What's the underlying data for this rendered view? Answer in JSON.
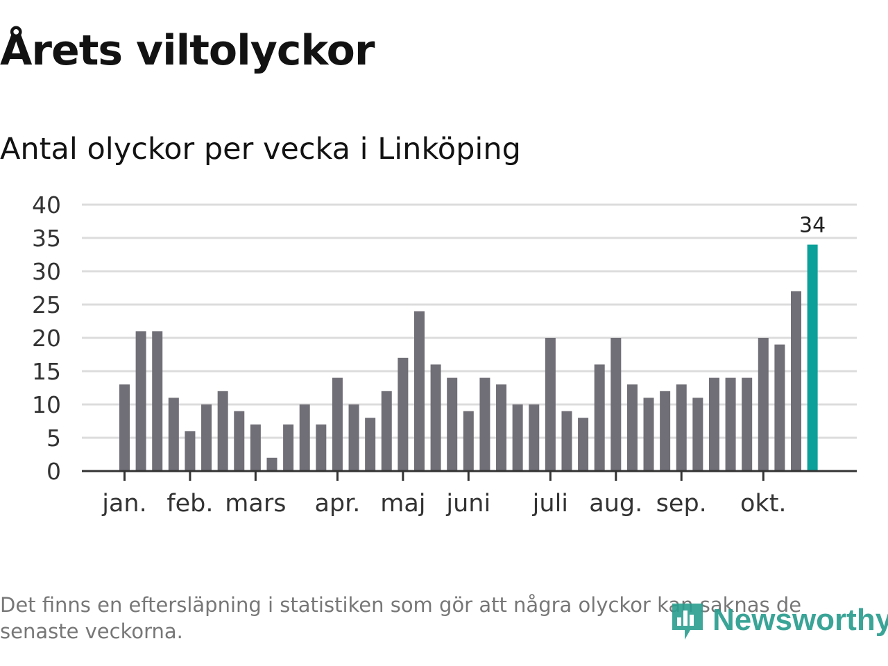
{
  "title": "Årets viltolyckor",
  "subtitle": "Antal olyckor per vecka i Linköping",
  "footnote": "Det finns en eftersläpning i statistiken som gör att några olyckor kan saknas de senaste veckorna.",
  "brand": {
    "name": "Newsworthy",
    "icon": "newsworthy-logo-icon"
  },
  "colors": {
    "bar": "#706e76",
    "highlight": "#0ba09a",
    "grid": "#dcdcdc",
    "axis": "#333333"
  },
  "chart_data": {
    "type": "bar",
    "title": "Antal olyckor per vecka i Linköping",
    "xlabel": "",
    "ylabel": "",
    "ylim": [
      0,
      40
    ],
    "yticks": [
      "0",
      "5",
      "10",
      "15",
      "20",
      "25",
      "30",
      "35",
      "40"
    ],
    "grid": true,
    "weeks": [
      1,
      2,
      3,
      4,
      5,
      6,
      7,
      8,
      9,
      10,
      11,
      12,
      13,
      14,
      15,
      16,
      17,
      18,
      19,
      20,
      21,
      22,
      23,
      24,
      25,
      26,
      27,
      28,
      29,
      30,
      31,
      32,
      33,
      34,
      35,
      36,
      37,
      38,
      39,
      40,
      41,
      42,
      43
    ],
    "values": [
      13,
      21,
      21,
      11,
      6,
      10,
      12,
      9,
      7,
      2,
      7,
      10,
      7,
      14,
      10,
      8,
      12,
      17,
      24,
      16,
      14,
      9,
      14,
      13,
      10,
      10,
      20,
      9,
      8,
      16,
      20,
      13,
      11,
      12,
      13,
      11,
      14,
      14,
      14,
      20,
      19,
      27,
      34
    ],
    "highlight_index": 42,
    "highlight_label": "34",
    "month_ticks": [
      {
        "label": "jan.",
        "week": 1
      },
      {
        "label": "feb.",
        "week": 5
      },
      {
        "label": "mars",
        "week": 9
      },
      {
        "label": "apr.",
        "week": 14
      },
      {
        "label": "maj",
        "week": 18
      },
      {
        "label": "juni",
        "week": 22
      },
      {
        "label": "juli",
        "week": 27
      },
      {
        "label": "aug.",
        "week": 31
      },
      {
        "label": "sep.",
        "week": 35
      },
      {
        "label": "okt.",
        "week": 40
      }
    ]
  }
}
